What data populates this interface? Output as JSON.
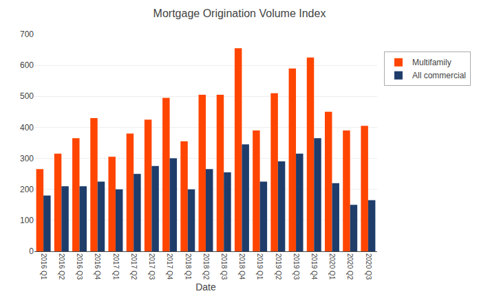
{
  "chart_data": {
    "type": "bar",
    "title": "Mortgage Origination Volume Index",
    "xlabel": "Date",
    "categories": [
      "2016 Q1",
      "2016 Q2",
      "2016 Q3",
      "2016 Q4",
      "2017 Q1",
      "2017 Q2",
      "2017 Q3",
      "2017 Q4",
      "2018 Q1",
      "2018 Q2",
      "2018 Q3",
      "2018 Q4",
      "2019 Q1",
      "2019 Q2",
      "2019 Q3",
      "2019 Q4",
      "2020 Q1",
      "2020 Q2",
      "2020 Q3"
    ],
    "series": [
      {
        "name": "Multifamily",
        "color": "#FF4500",
        "values": [
          265,
          315,
          365,
          430,
          305,
          380,
          425,
          495,
          355,
          505,
          505,
          655,
          390,
          510,
          590,
          625,
          450,
          390,
          405
        ]
      },
      {
        "name": "All commercial",
        "color": "#1F3D6B",
        "values": [
          180,
          210,
          210,
          225,
          200,
          250,
          275,
          300,
          200,
          265,
          255,
          345,
          225,
          290,
          315,
          365,
          220,
          150,
          165
        ]
      }
    ],
    "ylim": [
      0,
      700
    ],
    "yticks": [
      0,
      100,
      200,
      300,
      400,
      500,
      600,
      700
    ],
    "grid": true,
    "legend": "right"
  }
}
